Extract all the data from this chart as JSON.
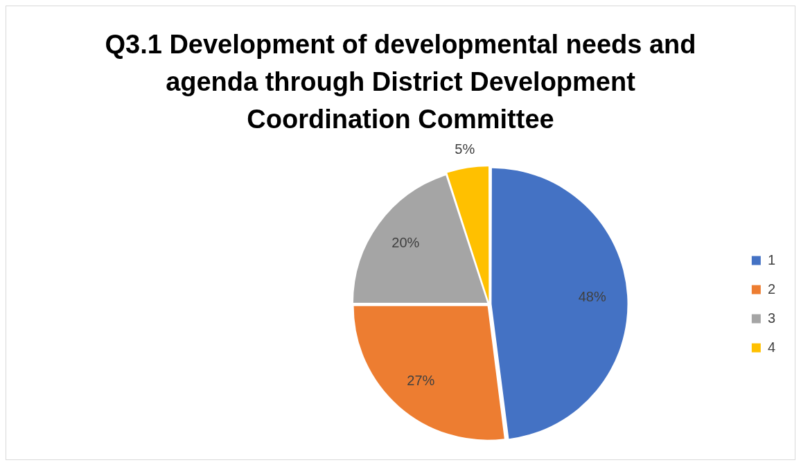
{
  "chart_data": {
    "type": "pie",
    "title": "Q3.1 Development of developmental needs and agenda through District Development Coordination Committee",
    "categories": [
      "1",
      "2",
      "3",
      "4"
    ],
    "values": [
      48,
      27,
      20,
      5
    ],
    "colors": [
      "#4472c4",
      "#ed7d31",
      "#a5a5a5",
      "#ffc000"
    ],
    "value_labels": [
      "48%",
      "27%",
      "20%",
      "5%"
    ],
    "legend": "right"
  }
}
